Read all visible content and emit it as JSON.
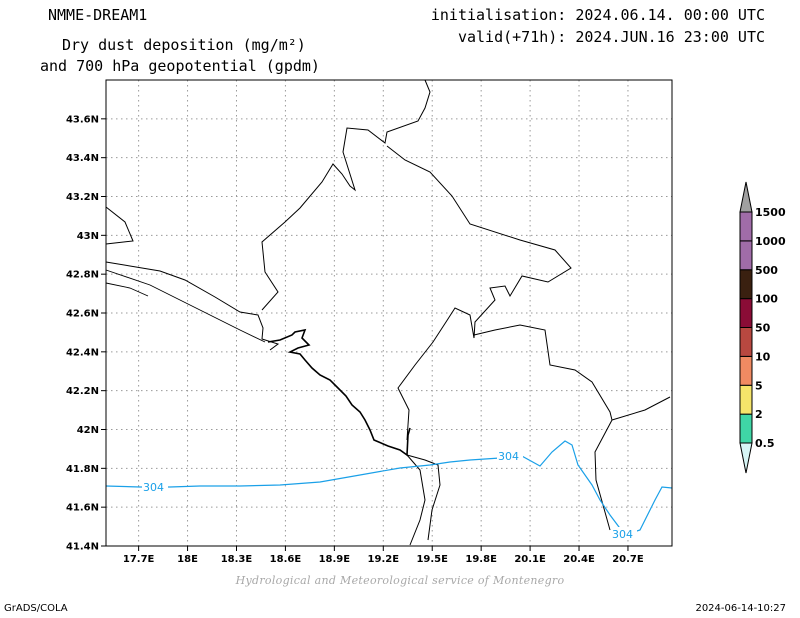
{
  "header": {
    "model": "NMME-DREAM1",
    "variable_line1": "Dry dust deposition (mg/m²)",
    "variable_line2": "and 700 hPa geopotential (gpdm)",
    "initialisation": "initialisation: 2024.06.14. 00:00 UTC",
    "valid": "valid(+71h): 2024.JUN.16 23:00 UTC"
  },
  "chart_data": {
    "type": "map",
    "lon_range": [
      17.5,
      20.97
    ],
    "lat_range": [
      41.4,
      43.8
    ],
    "lon_ticks": [
      "17.7E",
      "18E",
      "18.3E",
      "18.6E",
      "18.9E",
      "19.2E",
      "19.5E",
      "19.8E",
      "20.1E",
      "20.4E",
      "20.7E"
    ],
    "lat_ticks": [
      "41.4N",
      "41.6N",
      "41.8N",
      "42N",
      "42.2N",
      "42.4N",
      "42.6N",
      "42.8N",
      "43N",
      "43.2N",
      "43.4N",
      "43.6N"
    ],
    "grid": true,
    "contour": {
      "variable": "700 hPa geopotential",
      "level": 304,
      "labels": [
        "304",
        "304",
        "304"
      ],
      "color": "#1aa0e8"
    },
    "colorbar": {
      "levels": [
        "0.5",
        "2",
        "5",
        "10",
        "50",
        "100",
        "500",
        "1000",
        "1500"
      ],
      "colors": [
        "#d6f5f5",
        "#3fd6a6",
        "#f5e46a",
        "#f08a62",
        "#b84840",
        "#8a0c36",
        "#3a2010",
        "#a06ca8",
        "#a0a0a0"
      ]
    }
  },
  "credit": "Hydrological and Meteorological service of Montenegro",
  "footer": {
    "left": "GrADS/COLA",
    "right": "2024-06-14-10:27"
  }
}
